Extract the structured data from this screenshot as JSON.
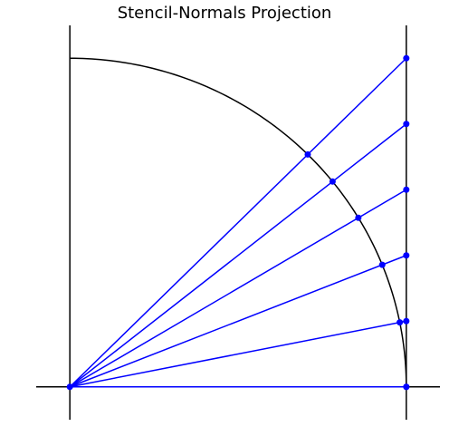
{
  "title": "Stencil-Normals Projection",
  "colors": {
    "axis": "#000000",
    "arc": "#000000",
    "rays": "#0000ff",
    "points": "#0000ff",
    "background": "#ffffff"
  },
  "diagram": {
    "type": "stencil-normals-projection",
    "origin": [
      0,
      0
    ],
    "arc": {
      "radius": 1,
      "start_deg": 0,
      "end_deg": 90
    },
    "vertical_line_x": 1,
    "view_xlim": [
      -0.1,
      1.1
    ],
    "view_ylim": [
      -0.1,
      1.1
    ],
    "rays": [
      {
        "tangent_y": 0.0
      },
      {
        "tangent_y": 0.2
      },
      {
        "tangent_y": 0.4
      },
      {
        "tangent_y": 0.6
      },
      {
        "tangent_y": 0.8
      },
      {
        "tangent_y": 1.0
      }
    ]
  }
}
